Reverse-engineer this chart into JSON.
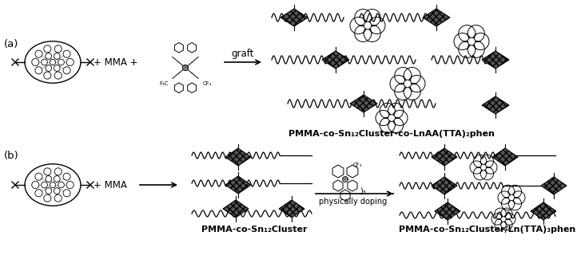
{
  "label_a": "(a)",
  "label_b": "(b)",
  "text_plus_mma_plus": "+ MMA +",
  "text_plus_mma": "+ MMA",
  "text_graft": "graft",
  "text_physically_doping": "physically doping",
  "label_pmma_co_sn12_cluster_co_lnaa": "PMMA-co-Sn₁₂Cluster-co-LnAA(TTA)₂phen",
  "label_pmma_co_sn12_cluster": "PMMA-co-Sn₁₂Cluster",
  "label_pmma_co_sn12_cluster_ln": "PMMA-co-Sn₁₂Cluster/Ln(TTA)₃phen",
  "bg_color": "#ffffff",
  "text_color": "#000000",
  "font_size_label": 8.0,
  "font_size_ab": 9.5,
  "font_size_graft": 8.5
}
